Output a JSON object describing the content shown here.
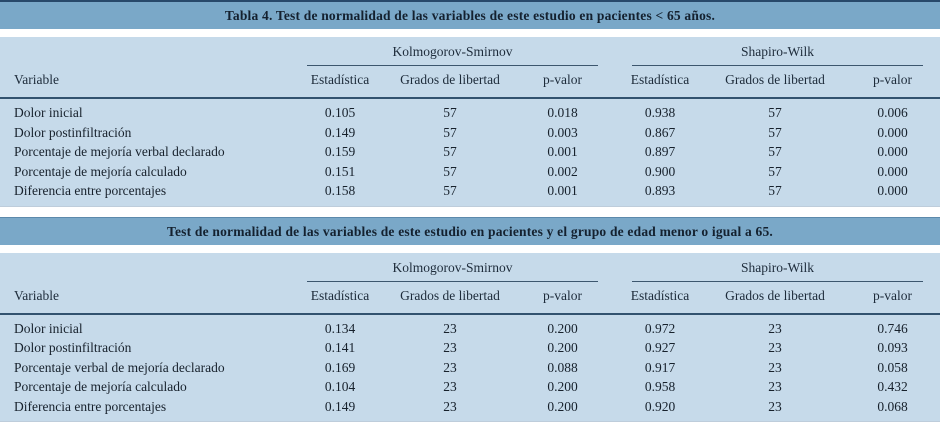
{
  "colors": {
    "title_band": "#7aa8c8",
    "panel": "#c6daea",
    "rule_navy": "#32526f",
    "top_border": "#28496a",
    "text": "#1a2430"
  },
  "headers": {
    "variable": "Variable",
    "group_ks": "Kolmogorov-Smirnov",
    "group_sw": "Shapiro-Wilk",
    "sub": [
      "Estadística",
      "Grados de libertad",
      "p-valor"
    ]
  },
  "tables": [
    {
      "title": "Tabla 4. Test de normalidad de las variables de este estudio en pacientes < 65 años.",
      "rows": [
        {
          "variable": "Dolor inicial",
          "values": [
            "0.105",
            "57",
            "0.018",
            "0.938",
            "57",
            "0.006"
          ]
        },
        {
          "variable": "Dolor postinfiltración",
          "values": [
            "0.149",
            "57",
            "0.003",
            "0.867",
            "57",
            "0.000"
          ]
        },
        {
          "variable": "Porcentaje de mejoría verbal declarado",
          "values": [
            "0.159",
            "57",
            "0.001",
            "0.897",
            "57",
            "0.000"
          ]
        },
        {
          "variable": "Porcentaje de mejoría calculado",
          "values": [
            "0.151",
            "57",
            "0.002",
            "0.900",
            "57",
            "0.000"
          ]
        },
        {
          "variable": "Diferencia entre porcentajes",
          "values": [
            "0.158",
            "57",
            "0.001",
            "0.893",
            "57",
            "0.000"
          ]
        }
      ]
    },
    {
      "title": "Test de normalidad de las variables de este estudio en pacientes y el grupo de edad menor o igual a 65.",
      "rows": [
        {
          "variable": "Dolor inicial",
          "values": [
            "0.134",
            "23",
            "0.200",
            "0.972",
            "23",
            "0.746"
          ]
        },
        {
          "variable": "Dolor postinfiltración",
          "values": [
            "0.141",
            "23",
            "0.200",
            "0.927",
            "23",
            "0.093"
          ]
        },
        {
          "variable": "Porcentaje verbal de mejoría declarado",
          "values": [
            "0.169",
            "23",
            "0.088",
            "0.917",
            "23",
            "0.058"
          ]
        },
        {
          "variable": "Porcentaje de mejoría calculado",
          "values": [
            "0.104",
            "23",
            "0.200",
            "0.958",
            "23",
            "0.432"
          ]
        },
        {
          "variable": "Diferencia entre porcentajes",
          "values": [
            "0.149",
            "23",
            "0.200",
            "0.920",
            "23",
            "0.068"
          ]
        }
      ]
    }
  ]
}
